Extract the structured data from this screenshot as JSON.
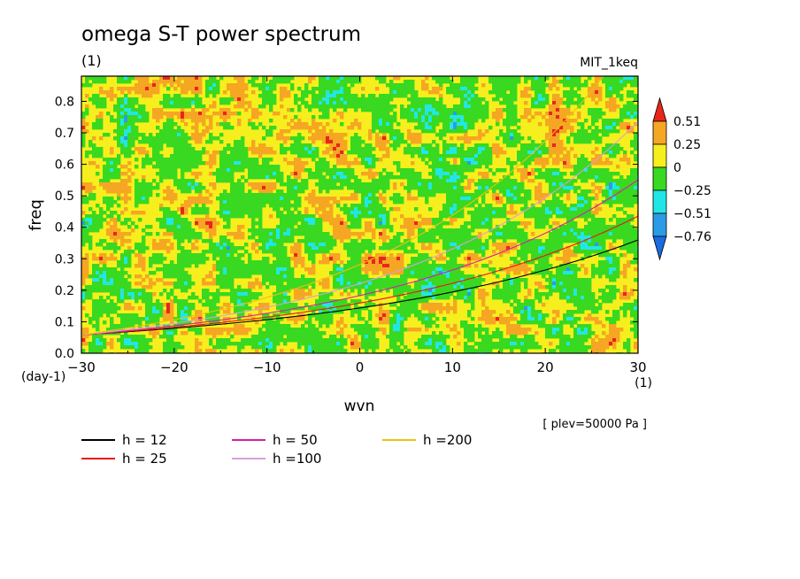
{
  "chart_data": {
    "type": "heatmap",
    "title": "omega S-T power spectrum",
    "subtitle": "(1)",
    "model_label": "MIT_1keq",
    "xlabel": "wvn",
    "ylabel": "freq",
    "x_unit_label": "(1)",
    "y_unit_label": "(day-1)",
    "level_label": "[ plev=50000 Pa ]",
    "xlim": [
      -30,
      30
    ],
    "ylim": [
      0,
      0.88
    ],
    "x_ticks": [
      -30,
      -20,
      -10,
      0,
      10,
      20,
      30
    ],
    "y_ticks": [
      0.0,
      0.1,
      0.2,
      0.3,
      0.4,
      0.5,
      0.6,
      0.7,
      0.8
    ],
    "y_tick_labels": [
      "0.0",
      "0.1",
      "0.2",
      "0.3",
      "0.4",
      "0.5",
      "0.6",
      "0.7",
      "0.8"
    ],
    "colorbar": {
      "labels": [
        "0.51",
        "0.25",
        "0",
        "-0.25",
        "-0.51",
        "-0.76"
      ],
      "label_display": [
        "0.51",
        "0.25",
        "0",
        "−0.25",
        "−0.51",
        "−0.76"
      ],
      "bins": [
        {
          "range": "> 0.51",
          "color": "#e8261c"
        },
        {
          "range": "0.25 to 0.51",
          "color": "#f5a623"
        },
        {
          "range": "0 to 0.25",
          "color": "#f7ef1d"
        },
        {
          "range": "-0.25 to 0",
          "color": "#38d920"
        },
        {
          "range": "-0.51 to -0.25",
          "color": "#22e6e6"
        },
        {
          "range": "-0.76 to -0.51",
          "color": "#2b9be8"
        },
        {
          "range": "< -0.76",
          "color": "#1a6be0"
        }
      ]
    },
    "series": [
      {
        "name": "h = 12",
        "label": "h = 12",
        "color": "#000000",
        "h": 12
      },
      {
        "name": "h = 25",
        "label": "h = 25",
        "color": "#e8161c",
        "h": 25
      },
      {
        "name": "h = 50",
        "label": "h = 50",
        "color": "#d61fa8",
        "h": 50
      },
      {
        "name": "h =100",
        "label": "h =100",
        "color": "#d8a0d8",
        "h": 100
      },
      {
        "name": "h =200",
        "label": "h =200",
        "color": "#f0c010",
        "h": 200
      }
    ]
  }
}
